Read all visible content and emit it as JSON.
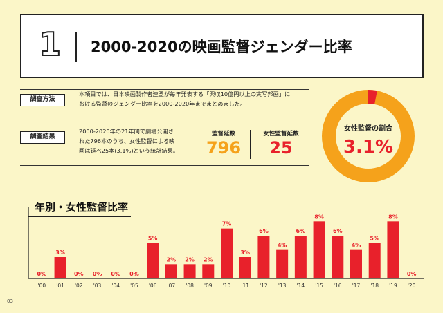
{
  "header": {
    "number": "1",
    "title": "2000-2020の映画監督ジェンダー比率"
  },
  "method": {
    "tag": "調査方法",
    "lines": [
      "本項目では、日本映画製作者連盟が毎年発表する「興収10億円以上の実写邦画」に",
      "おける監督のジェンダー比率を2000-2020年までまとめました。"
    ]
  },
  "result": {
    "tag": "調査結果",
    "lines": [
      "2000-2020年の21年間で劇場公開さ",
      "れた796本のうち、女性監督による映",
      "画は延べ25本(3.1%)という統計結果。"
    ]
  },
  "stats": {
    "directors_label": "監督延数",
    "directors_value": "796",
    "female_label": "女性監督延数",
    "female_value": "25"
  },
  "donut": {
    "label": "女性監督の割合",
    "value_text": "3.1%",
    "fraction": 0.031
  },
  "colors": {
    "red": "#e8212b",
    "orange": "#f5a21b",
    "bg": "#fbf6c8"
  },
  "page_number": "03",
  "chart_data": {
    "type": "bar",
    "title": "年別・女性監督比率",
    "categories": [
      "'00",
      "'01",
      "'02",
      "'03",
      "'04",
      "'05",
      "'06",
      "'07",
      "'08",
      "'09",
      "'10",
      "'11",
      "'12",
      "'13",
      "'14",
      "'15",
      "'16",
      "'17",
      "'18",
      "'19",
      "'20"
    ],
    "values": [
      0,
      3,
      0,
      0,
      0,
      0,
      5,
      2,
      2,
      2,
      7,
      3,
      6,
      4,
      6,
      8,
      6,
      4,
      5,
      8,
      0
    ],
    "value_labels": [
      "0%",
      "3%",
      "0%",
      "0%",
      "0%",
      "0%",
      "5%",
      "2%",
      "2%",
      "2%",
      "7%",
      "3%",
      "6%",
      "4%",
      "6%",
      "8%",
      "6%",
      "4%",
      "5%",
      "8%",
      "0%"
    ],
    "ylim": [
      0,
      9
    ],
    "color": "#e8212b"
  }
}
